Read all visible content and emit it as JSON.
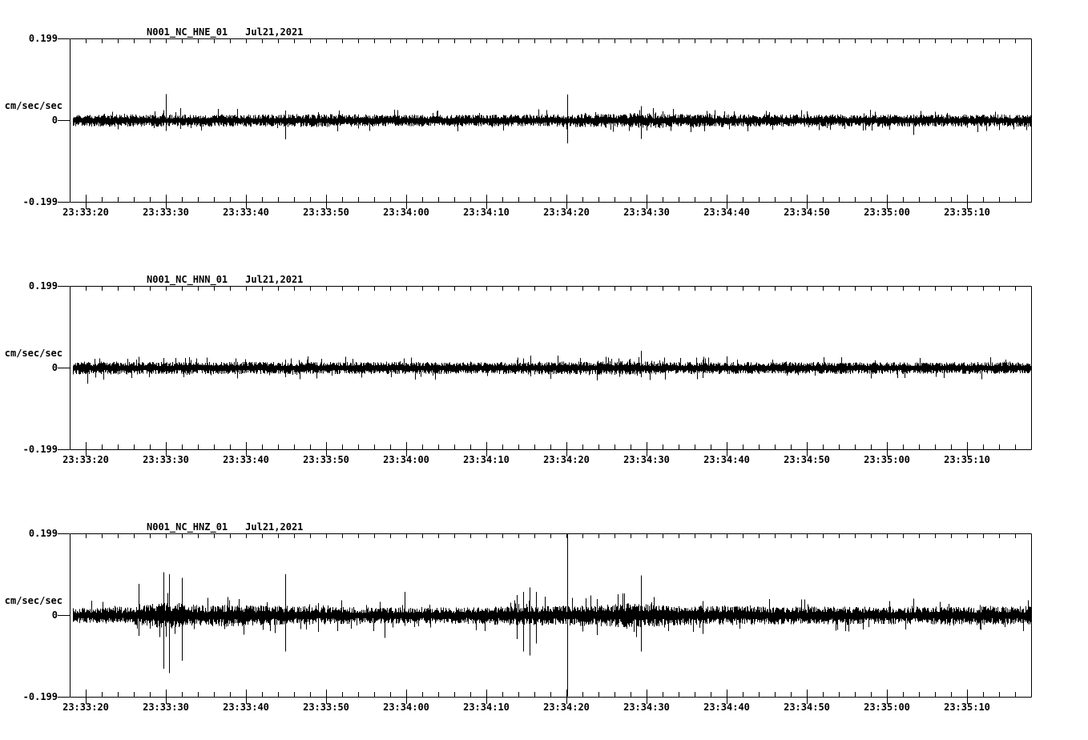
{
  "page": {
    "background_color": "#ffffff",
    "ink_color": "#000000"
  },
  "chart_data": [
    {
      "type": "line",
      "title": "N001_NC_HNE_01",
      "date_label": "Jul21,2021",
      "ylabel": "cm/sec/sec",
      "ylim": [
        -0.199,
        0.199
      ],
      "y_ticks": [
        "0.199",
        "0",
        "-0.199"
      ],
      "x_start_time": "23:33:18",
      "x_span_seconds": 120,
      "x_minor_tick_seconds": 2,
      "x_major_ticks": [
        {
          "t": 2,
          "label": "23:33:20"
        },
        {
          "t": 12,
          "label": "23:33:30"
        },
        {
          "t": 22,
          "label": "23:33:40"
        },
        {
          "t": 32,
          "label": "23:33:50"
        },
        {
          "t": 42,
          "label": "23:34:00"
        },
        {
          "t": 52,
          "label": "23:34:10"
        },
        {
          "t": 62,
          "label": "23:34:20"
        },
        {
          "t": 72,
          "label": "23:34:30"
        },
        {
          "t": 82,
          "label": "23:34:40"
        },
        {
          "t": 92,
          "label": "23:34:50"
        },
        {
          "t": 102,
          "label": "23:35:00"
        },
        {
          "t": 112,
          "label": "23:35:10"
        }
      ],
      "grid": false,
      "legend": false,
      "noise_envelope": [
        [
          0,
          0.013
        ],
        [
          26,
          0.013
        ],
        [
          27.5,
          0.014
        ],
        [
          40,
          0.0125
        ],
        [
          60,
          0.0125
        ],
        [
          62,
          0.014
        ],
        [
          68,
          0.014
        ],
        [
          71,
          0.016
        ],
        [
          74,
          0.014
        ],
        [
          90,
          0.013
        ],
        [
          120,
          0.013
        ]
      ],
      "spikes": [
        {
          "t": 12.0,
          "up": 0.064,
          "down": 0.025
        },
        {
          "t": 13.8,
          "up": 0.03,
          "down": 0.02
        },
        {
          "t": 26.9,
          "up": 0.024,
          "down": 0.046
        },
        {
          "t": 31.0,
          "up": 0.02,
          "down": 0.015
        },
        {
          "t": 62.1,
          "up": 0.063,
          "down": 0.056
        },
        {
          "t": 71.3,
          "up": 0.035,
          "down": 0.045
        },
        {
          "t": 74.0,
          "up": 0.022,
          "down": 0.018
        },
        {
          "t": 105.3,
          "up": 0.015,
          "down": 0.035
        }
      ],
      "seed": 101
    },
    {
      "type": "line",
      "title": "N001_NC_HNN_01",
      "date_label": "Jul21,2021",
      "ylabel": "cm/sec/sec",
      "ylim": [
        -0.199,
        0.199
      ],
      "y_ticks": [
        "0.199",
        "0",
        "-0.199"
      ],
      "x_start_time": "23:33:18",
      "x_span_seconds": 120,
      "x_minor_tick_seconds": 2,
      "x_major_ticks": [
        {
          "t": 2,
          "label": "23:33:20"
        },
        {
          "t": 12,
          "label": "23:33:30"
        },
        {
          "t": 22,
          "label": "23:33:40"
        },
        {
          "t": 32,
          "label": "23:33:50"
        },
        {
          "t": 42,
          "label": "23:34:00"
        },
        {
          "t": 52,
          "label": "23:34:10"
        },
        {
          "t": 62,
          "label": "23:34:20"
        },
        {
          "t": 72,
          "label": "23:34:30"
        },
        {
          "t": 82,
          "label": "23:34:40"
        },
        {
          "t": 92,
          "label": "23:34:50"
        },
        {
          "t": 102,
          "label": "23:35:00"
        },
        {
          "t": 112,
          "label": "23:35:10"
        }
      ],
      "grid": false,
      "legend": false,
      "noise_envelope": [
        [
          0,
          0.0135
        ],
        [
          30,
          0.013
        ],
        [
          55,
          0.013
        ],
        [
          60,
          0.014
        ],
        [
          70,
          0.0145
        ],
        [
          75,
          0.013
        ],
        [
          100,
          0.0125
        ],
        [
          120,
          0.0125
        ]
      ],
      "spikes": [
        {
          "t": 2.2,
          "up": 0.012,
          "down": 0.038
        },
        {
          "t": 8.6,
          "up": 0.027,
          "down": 0.012
        },
        {
          "t": 14.4,
          "up": 0.024,
          "down": 0.014
        },
        {
          "t": 26.9,
          "up": 0.02,
          "down": 0.022
        },
        {
          "t": 57.5,
          "up": 0.03,
          "down": 0.02
        },
        {
          "t": 65.8,
          "up": 0.015,
          "down": 0.03
        },
        {
          "t": 71.3,
          "up": 0.042,
          "down": 0.022
        },
        {
          "t": 79.0,
          "up": 0.02,
          "down": 0.024
        }
      ],
      "seed": 202
    },
    {
      "type": "line",
      "title": "N001_NC_HNZ_01",
      "date_label": "Jul21,2021",
      "ylabel": "cm/sec/sec",
      "ylim": [
        -0.199,
        0.199
      ],
      "y_ticks": [
        "0.199",
        "0",
        "-0.199"
      ],
      "x_start_time": "23:33:18",
      "x_span_seconds": 120,
      "x_minor_tick_seconds": 2,
      "x_major_ticks": [
        {
          "t": 2,
          "label": "23:33:20"
        },
        {
          "t": 12,
          "label": "23:33:30"
        },
        {
          "t": 22,
          "label": "23:33:40"
        },
        {
          "t": 32,
          "label": "23:33:50"
        },
        {
          "t": 42,
          "label": "23:34:00"
        },
        {
          "t": 52,
          "label": "23:34:10"
        },
        {
          "t": 62,
          "label": "23:34:20"
        },
        {
          "t": 72,
          "label": "23:34:30"
        },
        {
          "t": 82,
          "label": "23:34:40"
        },
        {
          "t": 92,
          "label": "23:34:50"
        },
        {
          "t": 102,
          "label": "23:35:00"
        },
        {
          "t": 112,
          "label": "23:35:10"
        }
      ],
      "grid": false,
      "legend": false,
      "noise_envelope": [
        [
          0,
          0.016
        ],
        [
          7,
          0.018
        ],
        [
          10,
          0.024
        ],
        [
          12,
          0.028
        ],
        [
          14,
          0.026
        ],
        [
          16,
          0.022
        ],
        [
          20,
          0.024
        ],
        [
          24,
          0.021
        ],
        [
          28,
          0.02
        ],
        [
          34,
          0.018
        ],
        [
          42,
          0.017
        ],
        [
          50,
          0.018
        ],
        [
          56,
          0.021
        ],
        [
          60,
          0.021
        ],
        [
          63,
          0.022
        ],
        [
          66,
          0.023
        ],
        [
          70,
          0.026
        ],
        [
          74,
          0.023
        ],
        [
          80,
          0.02
        ],
        [
          90,
          0.019
        ],
        [
          105,
          0.019
        ],
        [
          120,
          0.02
        ]
      ],
      "spikes": [
        {
          "t": 8.6,
          "up": 0.077,
          "down": 0.05
        },
        {
          "t": 11.7,
          "up": 0.105,
          "down": 0.13
        },
        {
          "t": 12.4,
          "up": 0.1,
          "down": 0.14
        },
        {
          "t": 14.0,
          "up": 0.092,
          "down": 0.11
        },
        {
          "t": 26.9,
          "up": 0.1,
          "down": 0.088
        },
        {
          "t": 31.0,
          "up": 0.03,
          "down": 0.04
        },
        {
          "t": 39.3,
          "up": 0.015,
          "down": 0.055
        },
        {
          "t": 41.8,
          "up": 0.058,
          "down": 0.025
        },
        {
          "t": 55.8,
          "up": 0.05,
          "down": 0.058
        },
        {
          "t": 56.6,
          "up": 0.058,
          "down": 0.088
        },
        {
          "t": 57.4,
          "up": 0.068,
          "down": 0.098
        },
        {
          "t": 58.2,
          "up": 0.058,
          "down": 0.068
        },
        {
          "t": 62.1,
          "up": 0.199,
          "down": 0.199
        },
        {
          "t": 65.8,
          "up": 0.04,
          "down": 0.048
        },
        {
          "t": 71.3,
          "up": 0.098,
          "down": 0.088
        },
        {
          "t": 79.0,
          "up": 0.035,
          "down": 0.045
        }
      ],
      "seed": 303
    }
  ]
}
